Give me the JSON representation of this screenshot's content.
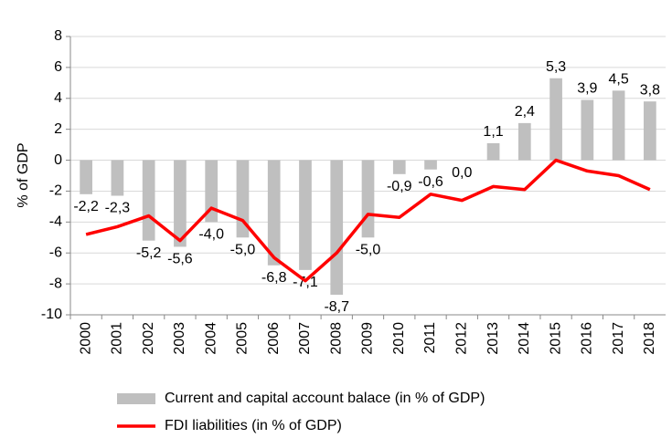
{
  "chart_data": {
    "type": "bar",
    "y_label": "% of GDP",
    "categories": [
      "2000",
      "2001",
      "2002",
      "2003",
      "2004",
      "2005",
      "2006",
      "2007",
      "2008",
      "2009",
      "2010",
      "2011",
      "2012",
      "2013",
      "2014",
      "2015",
      "2016",
      "2017",
      "2018"
    ],
    "series": [
      {
        "name": "Current and capital account balace (in % of GDP)",
        "type": "bar",
        "color": "#bfbfbf",
        "values": [
          -2.2,
          -2.3,
          -5.2,
          -5.6,
          -4.0,
          -5.0,
          -6.8,
          -7.1,
          -8.7,
          -5.0,
          -0.9,
          -0.6,
          0.0,
          1.1,
          2.4,
          5.3,
          3.9,
          4.5,
          3.8
        ],
        "value_labels": [
          "-2,2",
          "-2,3",
          "-5,2",
          "-5,6",
          "-4,0",
          "-5,0",
          "-6,8",
          "-7,1",
          "-8,7",
          "-5,0",
          "-0,9",
          "-0,6",
          "0,0",
          "1,1",
          "2,4",
          "5,3",
          "3,9",
          "4,5",
          "3,8"
        ]
      },
      {
        "name": "FDI liabilities (in % of GDP)",
        "type": "line",
        "color": "#ff0000",
        "values": [
          -4.8,
          -4.3,
          -3.6,
          -5.2,
          -3.1,
          -3.9,
          -6.3,
          -7.8,
          -6.0,
          -3.5,
          -3.7,
          -2.2,
          -2.6,
          -1.7,
          -1.9,
          0.0,
          -0.7,
          -1.0,
          -1.9
        ]
      }
    ],
    "ylim": [
      -10,
      8
    ],
    "yticks": [
      -10,
      -8,
      -6,
      -4,
      -2,
      0,
      2,
      4,
      6,
      8
    ],
    "grid": true,
    "legend": "bottom"
  }
}
